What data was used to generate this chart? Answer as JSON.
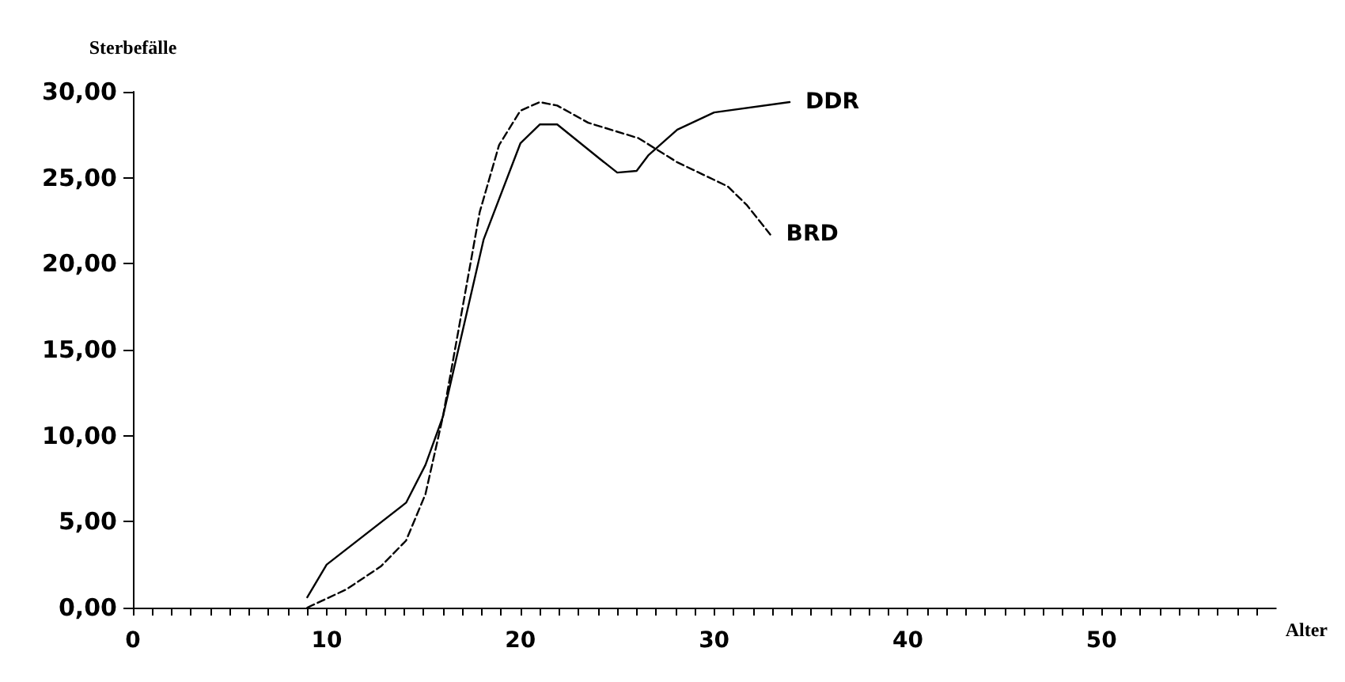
{
  "chart_data": {
    "type": "line",
    "xlabel": "Alter",
    "ylabel": "Sterbefälle",
    "xlim": [
      0,
      59
    ],
    "ylim": [
      0,
      30
    ],
    "xticks": [
      0,
      {
        "value": 1,
        "label": null
      },
      {
        "value": 2,
        "label": null
      },
      {
        "value": 3,
        "label": null
      },
      {
        "value": 4,
        "label": null
      },
      {
        "value": 5,
        "label": null
      },
      {
        "value": 6,
        "label": null
      },
      {
        "value": 7,
        "label": null
      },
      {
        "value": 8,
        "label": null
      },
      {
        "value": 9,
        "label": null
      },
      10,
      {
        "value": 11,
        "label": null
      },
      {
        "value": 12,
        "label": null
      },
      {
        "value": 13,
        "label": null
      },
      {
        "value": 14,
        "label": null
      },
      {
        "value": 15,
        "label": null
      },
      {
        "value": 16,
        "label": null
      },
      {
        "value": 17,
        "label": null
      },
      {
        "value": 18,
        "label": null
      },
      {
        "value": 19,
        "label": null
      },
      20,
      {
        "value": 21,
        "label": null
      },
      {
        "value": 22,
        "label": null
      },
      {
        "value": 23,
        "label": null
      },
      {
        "value": 24,
        "label": null
      },
      {
        "value": 25,
        "label": null
      },
      {
        "value": 26,
        "label": null
      },
      {
        "value": 27,
        "label": null
      },
      {
        "value": 28,
        "label": null
      },
      {
        "value": 29,
        "label": null
      },
      30,
      {
        "value": 31,
        "label": null
      },
      {
        "value": 32,
        "label": null
      },
      {
        "value": 33,
        "label": null
      },
      {
        "value": 34,
        "label": null
      },
      {
        "value": 35,
        "label": null
      },
      {
        "value": 36,
        "label": null
      },
      {
        "value": 37,
        "label": null
      },
      {
        "value": 38,
        "label": null
      },
      {
        "value": 39,
        "label": null
      },
      40,
      {
        "value": 41,
        "label": null
      },
      {
        "value": 42,
        "label": null
      },
      {
        "value": 43,
        "label": null
      },
      {
        "value": 44,
        "label": null
      },
      {
        "value": 45,
        "label": null
      },
      {
        "value": 46,
        "label": null
      },
      {
        "value": 47,
        "label": null
      },
      {
        "value": 48,
        "label": null
      },
      {
        "value": 49,
        "label": null
      },
      50,
      {
        "value": 51,
        "label": null
      },
      {
        "value": 52,
        "label": null
      },
      {
        "value": 53,
        "label": null
      },
      {
        "value": 54,
        "label": null
      },
      {
        "value": 55,
        "label": null
      },
      {
        "value": 56,
        "label": null
      },
      {
        "value": 57,
        "label": null
      },
      {
        "value": 58,
        "label": null
      }
    ],
    "yticks": [
      {
        "value": 0,
        "label": "0,00"
      },
      {
        "value": 5,
        "label": "5,00"
      },
      {
        "value": 10,
        "label": "10,00"
      },
      {
        "value": 15,
        "label": "15,00"
      },
      {
        "value": 20,
        "label": "20,00"
      },
      {
        "value": 25,
        "label": "25,00"
      },
      {
        "value": 30,
        "label": "30,00"
      }
    ],
    "grid": false,
    "legend": false,
    "marker": "none",
    "series": [
      {
        "name": "DDR",
        "color": "#000000",
        "line_style": "solid",
        "x": [
          9,
          10,
          14.1,
          15.1,
          16,
          18.1,
          20,
          21,
          21.9,
          24.1,
          25,
          26,
          26.6,
          28.1,
          30,
          33.9
        ],
        "values": [
          0.6,
          2.5,
          6.1,
          8.3,
          11.1,
          21.4,
          27.0,
          28.1,
          28.1,
          26.1,
          25.3,
          25.4,
          26.3,
          27.8,
          28.8,
          29.4
        ]
      },
      {
        "name": "BRD",
        "color": "#000000",
        "line_style": "dashed",
        "x": [
          9,
          11,
          12.8,
          14.1,
          15.1,
          16,
          17.9,
          18.9,
          20,
          21,
          21.9,
          23.5,
          26.1,
          28.1,
          30.7,
          31.7,
          32.9
        ],
        "values": [
          0,
          1.05,
          2.4,
          3.9,
          6.6,
          11.1,
          23.0,
          26.9,
          28.9,
          29.4,
          29.2,
          28.2,
          27.3,
          25.9,
          24.5,
          23.4,
          21.7
        ]
      }
    ]
  }
}
